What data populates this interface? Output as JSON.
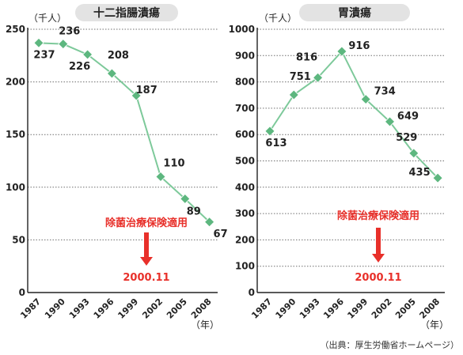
{
  "source": "（出典：厚生労働省ホームページ）",
  "colors": {
    "line": "#7dc99a",
    "marker": "#5db77f",
    "annotation": "#e8302a",
    "pill": "#e3e3e3"
  },
  "chart_data": [
    {
      "type": "line",
      "title": "十二指腸潰瘍",
      "ylabel": "（千人）",
      "xunit": "（年）",
      "categories": [
        "1987",
        "1990",
        "1993",
        "1996",
        "1999",
        "2002",
        "2005",
        "2008"
      ],
      "values": [
        237,
        236,
        226,
        208,
        187,
        110,
        89,
        67
      ],
      "ylim": [
        0,
        250
      ],
      "yticks": [
        0,
        50,
        100,
        150,
        200,
        250
      ],
      "grid": "horizontal-dotted",
      "annotation": {
        "text": "除菌治療保険適用",
        "date": "2000.11"
      }
    },
    {
      "type": "line",
      "title": "胃潰瘍",
      "ylabel": "（千人）",
      "xunit": "（年）",
      "categories": [
        "1987",
        "1990",
        "1993",
        "1996",
        "1999",
        "2002",
        "2005",
        "2008"
      ],
      "values": [
        613,
        751,
        816,
        916,
        734,
        649,
        529,
        435
      ],
      "ylim": [
        0,
        1000
      ],
      "yticks": [
        0,
        100,
        200,
        300,
        400,
        500,
        600,
        700,
        800,
        900,
        1000
      ],
      "grid": "horizontal-dotted",
      "annotation": {
        "text": "除菌治療保険適用",
        "date": "2000.11"
      }
    }
  ]
}
